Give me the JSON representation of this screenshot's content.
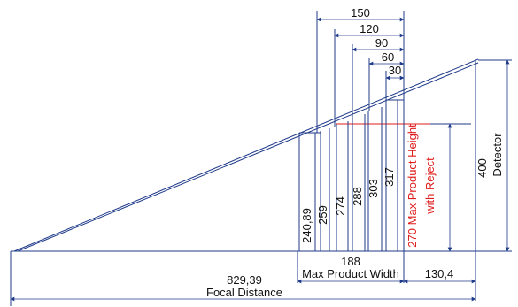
{
  "dimensions": {
    "top_widths": [
      "150",
      "120",
      "90",
      "60",
      "30"
    ],
    "heights": [
      "240,89",
      "259",
      "274",
      "288",
      "303",
      "317"
    ],
    "red_label_line1": "270 Max Product Height",
    "red_label_line2": "with Reject",
    "detector_value": "400",
    "detector_label": "Detector",
    "max_width_value": "188",
    "max_width_label": "Max Product Width",
    "right_offset": "130,4",
    "focal_value": "829,39",
    "focal_label": "Focal Distance"
  },
  "colors": {
    "line": "#1f3a8a",
    "red": "#e01b1b",
    "text": "#111111"
  }
}
